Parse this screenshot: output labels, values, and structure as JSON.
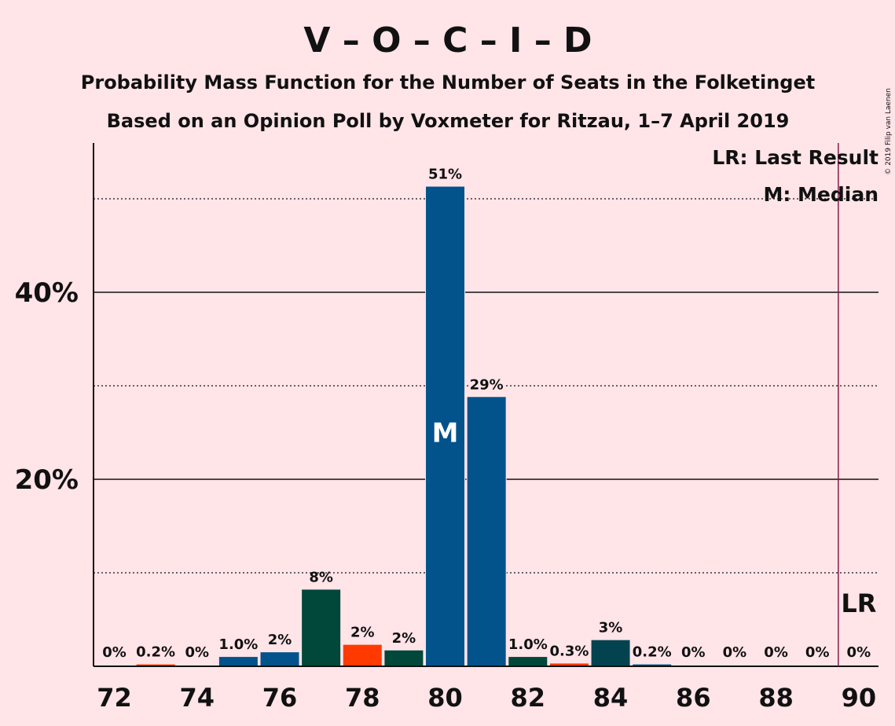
{
  "header": {
    "title": "V – O – C – I – D",
    "subtitle1": "Probability Mass Function for the Number of Seats in the Folketinget",
    "subtitle2": "Based on an Opinion Poll by Voxmeter for Ritzau, 1–7 April 2019",
    "copyright": "© 2019 Filip van Laenen"
  },
  "legend": {
    "last_result": "LR: Last Result",
    "median": "M: Median"
  },
  "markers": {
    "median_seat": 80,
    "median_label": "M",
    "last_result_seat": 90,
    "last_result_label": "LR"
  },
  "colors": {
    "background": "#FFE4E8",
    "blue": "#02528C",
    "dark_green": "#01473A",
    "orange": "#FF3A00",
    "dark_teal": "#02434F",
    "last_result_line": "#8B1A4A"
  },
  "chart_data": {
    "type": "bar",
    "x": [
      72,
      73,
      74,
      75,
      76,
      77,
      78,
      79,
      80,
      81,
      82,
      83,
      84,
      85,
      86,
      87,
      88,
      89,
      90
    ],
    "values": [
      0,
      0.2,
      0,
      1.0,
      1.5,
      8.2,
      2.3,
      1.7,
      51.3,
      28.8,
      1.0,
      0.3,
      2.8,
      0.2,
      0,
      0,
      0,
      0,
      0
    ],
    "data_labels": [
      "0%",
      "0.2%",
      "0%",
      "1.0%",
      "2%",
      "8%",
      "2%",
      "2%",
      "51%",
      "29%",
      "1.0%",
      "0.3%",
      "3%",
      "0.2%",
      "0%",
      "0%",
      "0%",
      "0%",
      "0%"
    ],
    "bar_colors": [
      "blue",
      "orange",
      "blue",
      "blue",
      "blue",
      "dark_green",
      "orange",
      "dark_green",
      "blue",
      "blue",
      "dark_green",
      "orange",
      "dark_teal",
      "blue",
      "blue",
      "blue",
      "blue",
      "blue",
      "blue"
    ],
    "x_tick_labels": [
      "72",
      "74",
      "76",
      "78",
      "80",
      "82",
      "84",
      "86",
      "88",
      "90"
    ],
    "y_tick_labels": [
      "20%",
      "40%"
    ],
    "major_gridlines": [
      20,
      40
    ],
    "minor_gridlines": [
      10,
      30,
      50
    ],
    "ylim": [
      0,
      56
    ],
    "xlim": [
      71.5,
      90.5
    ],
    "xlabel": "",
    "ylabel": ""
  }
}
